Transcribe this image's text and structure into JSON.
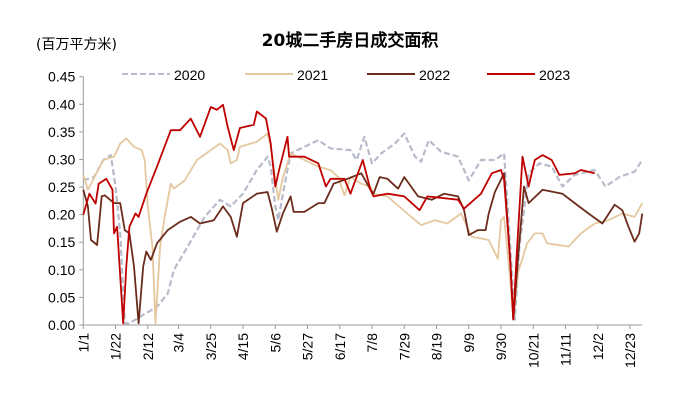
{
  "chart_data": {
    "type": "line",
    "title": "20城二手房日成交面积",
    "ylabel": "(百万平方米)",
    "xlabel": "",
    "ylim": [
      0,
      0.45
    ],
    "yticks": [
      "0.00",
      "0.05",
      "0.10",
      "0.15",
      "0.20",
      "0.25",
      "0.30",
      "0.35",
      "0.40",
      "0.45"
    ],
    "xticks": [
      "1/1",
      "1/22",
      "2/12",
      "3/4",
      "3/25",
      "4/15",
      "5/6",
      "5/27",
      "6/17",
      "7/8",
      "7/29",
      "8/19",
      "9/9",
      "9/30",
      "10/21",
      "11/11",
      "12/2",
      "12/23"
    ],
    "grid": false,
    "legend": "top",
    "series": [
      {
        "name": "2020",
        "color": "#B8BBCA",
        "dashed": true,
        "points": [
          [
            "1/1",
            0.262
          ],
          [
            "1/8",
            0.268
          ],
          [
            "1/14",
            0.299
          ],
          [
            "1/19",
            0.308
          ],
          [
            "1/22",
            0.251
          ],
          [
            "1/25",
            0.166
          ],
          [
            "1/28",
            0.003
          ],
          [
            "1/31",
            0.003
          ],
          [
            "2/7",
            0.015
          ],
          [
            "2/18",
            0.033
          ],
          [
            "2/25",
            0.057
          ],
          [
            "3/1",
            0.1
          ],
          [
            "3/10",
            0.142
          ],
          [
            "3/21",
            0.196
          ],
          [
            "3/31",
            0.227
          ],
          [
            "4/7",
            0.215
          ],
          [
            "4/15",
            0.238
          ],
          [
            "4/24",
            0.281
          ],
          [
            "5/1",
            0.305
          ],
          [
            "5/3",
            0.287
          ],
          [
            "5/6",
            0.215
          ],
          [
            "5/8",
            0.19
          ],
          [
            "5/11",
            0.238
          ],
          [
            "5/16",
            0.311
          ],
          [
            "5/25",
            0.323
          ],
          [
            "6/3",
            0.335
          ],
          [
            "6/11",
            0.32
          ],
          [
            "6/24",
            0.317
          ],
          [
            "6/28",
            0.299
          ],
          [
            "7/3",
            0.341
          ],
          [
            "7/8",
            0.293
          ],
          [
            "7/14",
            0.311
          ],
          [
            "7/23",
            0.329
          ],
          [
            "7/29",
            0.347
          ],
          [
            "8/5",
            0.305
          ],
          [
            "8/9",
            0.296
          ],
          [
            "8/14",
            0.335
          ],
          [
            "8/22",
            0.314
          ],
          [
            "9/2",
            0.305
          ],
          [
            "9/9",
            0.262
          ],
          [
            "9/17",
            0.299
          ],
          [
            "9/26",
            0.299
          ],
          [
            "10/2",
            0.311
          ],
          [
            "10/6",
            0.142
          ],
          [
            "10/9",
            0.01
          ],
          [
            "10/12",
            0.142
          ],
          [
            "10/18",
            0.275
          ],
          [
            "10/25",
            0.293
          ],
          [
            "11/2",
            0.287
          ],
          [
            "11/9",
            0.251
          ],
          [
            "11/17",
            0.272
          ],
          [
            "11/30",
            0.281
          ],
          [
            "12/7",
            0.251
          ],
          [
            "12/16",
            0.268
          ],
          [
            "12/26",
            0.278
          ],
          [
            "12/31",
            0.299
          ]
        ]
      },
      {
        "name": "2021",
        "color": "#E5C89F",
        "dashed": false,
        "points": [
          [
            "1/1",
            0.272
          ],
          [
            "1/4",
            0.245
          ],
          [
            "1/9",
            0.272
          ],
          [
            "1/14",
            0.299
          ],
          [
            "1/21",
            0.305
          ],
          [
            "1/25",
            0.329
          ],
          [
            "1/29",
            0.338
          ],
          [
            "2/3",
            0.323
          ],
          [
            "2/8",
            0.317
          ],
          [
            "2/10",
            0.299
          ],
          [
            "2/12",
            0.215
          ],
          [
            "2/15",
            0.142
          ],
          [
            "2/17",
            0.003
          ],
          [
            "2/20",
            0.142
          ],
          [
            "2/23",
            0.196
          ],
          [
            "2/27",
            0.256
          ],
          [
            "3/1",
            0.247
          ],
          [
            "3/8",
            0.262
          ],
          [
            "3/16",
            0.299
          ],
          [
            "3/25",
            0.317
          ],
          [
            "3/31",
            0.329
          ],
          [
            "4/5",
            0.317
          ],
          [
            "4/7",
            0.293
          ],
          [
            "4/11",
            0.299
          ],
          [
            "4/13",
            0.323
          ],
          [
            "4/24",
            0.332
          ],
          [
            "5/1",
            0.347
          ],
          [
            "5/3",
            0.323
          ],
          [
            "5/8",
            0.227
          ],
          [
            "5/11",
            0.268
          ],
          [
            "5/16",
            0.311
          ],
          [
            "5/25",
            0.299
          ],
          [
            "6/3",
            0.287
          ],
          [
            "6/11",
            0.281
          ],
          [
            "6/16",
            0.268
          ],
          [
            "6/20",
            0.235
          ],
          [
            "6/24",
            0.268
          ],
          [
            "7/1",
            0.256
          ],
          [
            "7/7",
            0.251
          ],
          [
            "7/9",
            0.238
          ],
          [
            "7/18",
            0.233
          ],
          [
            "7/31",
            0.202
          ],
          [
            "8/9",
            0.181
          ],
          [
            "8/18",
            0.19
          ],
          [
            "8/26",
            0.184
          ],
          [
            "9/4",
            0.202
          ],
          [
            "9/11",
            0.16
          ],
          [
            "9/22",
            0.154
          ],
          [
            "9/28",
            0.12
          ],
          [
            "9/30",
            0.19
          ],
          [
            "10/2",
            0.196
          ],
          [
            "10/6",
            0.082
          ],
          [
            "10/8",
            0.01
          ],
          [
            "10/11",
            0.094
          ],
          [
            "10/17",
            0.148
          ],
          [
            "10/22",
            0.166
          ],
          [
            "10/27",
            0.166
          ],
          [
            "10/30",
            0.148
          ],
          [
            "11/13",
            0.142
          ],
          [
            "11/21",
            0.166
          ],
          [
            "11/30",
            0.184
          ],
          [
            "12/9",
            0.19
          ],
          [
            "12/18",
            0.202
          ],
          [
            "12/26",
            0.196
          ],
          [
            "12/31",
            0.221
          ]
        ]
      },
      {
        "name": "2022",
        "color": "#6B2C1C",
        "dashed": false,
        "points": [
          [
            "1/1",
            0.245
          ],
          [
            "1/4",
            0.215
          ],
          [
            "1/6",
            0.154
          ],
          [
            "1/10",
            0.145
          ],
          [
            "1/13",
            0.233
          ],
          [
            "1/15",
            0.235
          ],
          [
            "1/21",
            0.221
          ],
          [
            "1/25",
            0.221
          ],
          [
            "1/28",
            0.172
          ],
          [
            "1/31",
            0.166
          ],
          [
            "2/3",
            0.106
          ],
          [
            "2/6",
            0.003
          ],
          [
            "2/9",
            0.106
          ],
          [
            "2/11",
            0.133
          ],
          [
            "2/14",
            0.118
          ],
          [
            "2/18",
            0.148
          ],
          [
            "2/25",
            0.172
          ],
          [
            "3/5",
            0.187
          ],
          [
            "3/12",
            0.196
          ],
          [
            "3/18",
            0.184
          ],
          [
            "3/27",
            0.19
          ],
          [
            "4/2",
            0.215
          ],
          [
            "4/7",
            0.196
          ],
          [
            "4/11",
            0.16
          ],
          [
            "4/15",
            0.221
          ],
          [
            "4/24",
            0.238
          ],
          [
            "5/1",
            0.241
          ],
          [
            "5/4",
            0.208
          ],
          [
            "5/7",
            0.169
          ],
          [
            "5/11",
            0.202
          ],
          [
            "5/16",
            0.233
          ],
          [
            "5/18",
            0.205
          ],
          [
            "5/25",
            0.205
          ],
          [
            "6/3",
            0.221
          ],
          [
            "6/7",
            0.221
          ],
          [
            "6/13",
            0.256
          ],
          [
            "6/22",
            0.265
          ],
          [
            "7/1",
            0.275
          ],
          [
            "7/7",
            0.245
          ],
          [
            "7/9",
            0.238
          ],
          [
            "7/13",
            0.268
          ],
          [
            "7/18",
            0.265
          ],
          [
            "7/25",
            0.247
          ],
          [
            "7/29",
            0.268
          ],
          [
            "8/7",
            0.233
          ],
          [
            "8/16",
            0.227
          ],
          [
            "8/24",
            0.238
          ],
          [
            "9/2",
            0.233
          ],
          [
            "9/6",
            0.208
          ],
          [
            "9/9",
            0.163
          ],
          [
            "9/15",
            0.172
          ],
          [
            "9/20",
            0.172
          ],
          [
            "9/22",
            0.202
          ],
          [
            "9/26",
            0.241
          ],
          [
            "10/2",
            0.275
          ],
          [
            "10/6",
            0.118
          ],
          [
            "10/8",
            0.01
          ],
          [
            "10/11",
            0.118
          ],
          [
            "10/15",
            0.251
          ],
          [
            "10/18",
            0.221
          ],
          [
            "10/27",
            0.245
          ],
          [
            "11/9",
            0.238
          ],
          [
            "11/17",
            0.221
          ],
          [
            "11/26",
            0.202
          ],
          [
            "12/5",
            0.184
          ],
          [
            "12/13",
            0.218
          ],
          [
            "12/18",
            0.208
          ],
          [
            "12/22",
            0.178
          ],
          [
            "12/26",
            0.151
          ],
          [
            "12/29",
            0.166
          ],
          [
            "12/31",
            0.202
          ]
        ]
      },
      {
        "name": "2023",
        "color": "#C00000",
        "dashed": false,
        "points": [
          [
            "1/1",
            0.2
          ],
          [
            "1/5",
            0.238
          ],
          [
            "1/9",
            0.22
          ],
          [
            "1/11",
            0.256
          ],
          [
            "1/16",
            0.265
          ],
          [
            "1/20",
            0.245
          ],
          [
            "1/21",
            0.166
          ],
          [
            "1/23",
            0.178
          ],
          [
            "1/27",
            0.003
          ],
          [
            "1/29",
            0.106
          ],
          [
            "1/31",
            0.178
          ],
          [
            "2/4",
            0.202
          ],
          [
            "2/6",
            0.196
          ],
          [
            "2/11",
            0.238
          ],
          [
            "2/18",
            0.287
          ],
          [
            "2/27",
            0.353
          ],
          [
            "3/5",
            0.353
          ],
          [
            "3/12",
            0.374
          ],
          [
            "3/18",
            0.341
          ],
          [
            "3/25",
            0.395
          ],
          [
            "3/29",
            0.39
          ],
          [
            "4/2",
            0.399
          ],
          [
            "4/5",
            0.359
          ],
          [
            "4/9",
            0.317
          ],
          [
            "4/13",
            0.357
          ],
          [
            "4/22",
            0.363
          ],
          [
            "4/24",
            0.387
          ],
          [
            "4/30",
            0.374
          ],
          [
            "5/3",
            0.329
          ],
          [
            "5/6",
            0.251
          ],
          [
            "5/9",
            0.287
          ],
          [
            "5/14",
            0.341
          ],
          [
            "5/15",
            0.305
          ],
          [
            "5/25",
            0.305
          ],
          [
            "6/3",
            0.293
          ],
          [
            "6/8",
            0.251
          ],
          [
            "6/11",
            0.265
          ],
          [
            "6/20",
            0.265
          ],
          [
            "6/24",
            0.238
          ],
          [
            "7/2",
            0.299
          ],
          [
            "7/7",
            0.245
          ],
          [
            "7/9",
            0.233
          ],
          [
            "7/18",
            0.238
          ],
          [
            "7/29",
            0.233
          ],
          [
            "8/8",
            0.208
          ],
          [
            "8/13",
            0.233
          ],
          [
            "9/2",
            0.227
          ],
          [
            "9/6",
            0.211
          ],
          [
            "9/17",
            0.238
          ],
          [
            "9/24",
            0.275
          ],
          [
            "9/30",
            0.281
          ],
          [
            "10/2",
            0.263
          ],
          [
            "10/6",
            0.118
          ],
          [
            "10/8",
            0.01
          ],
          [
            "10/10",
            0.118
          ],
          [
            "10/14",
            0.305
          ],
          [
            "10/18",
            0.251
          ],
          [
            "10/22",
            0.299
          ],
          [
            "10/27",
            0.308
          ],
          [
            "11/2",
            0.299
          ],
          [
            "11/7",
            0.272
          ],
          [
            "11/17",
            0.275
          ],
          [
            "11/21",
            0.281
          ],
          [
            "11/30",
            0.275
          ]
        ]
      }
    ]
  }
}
